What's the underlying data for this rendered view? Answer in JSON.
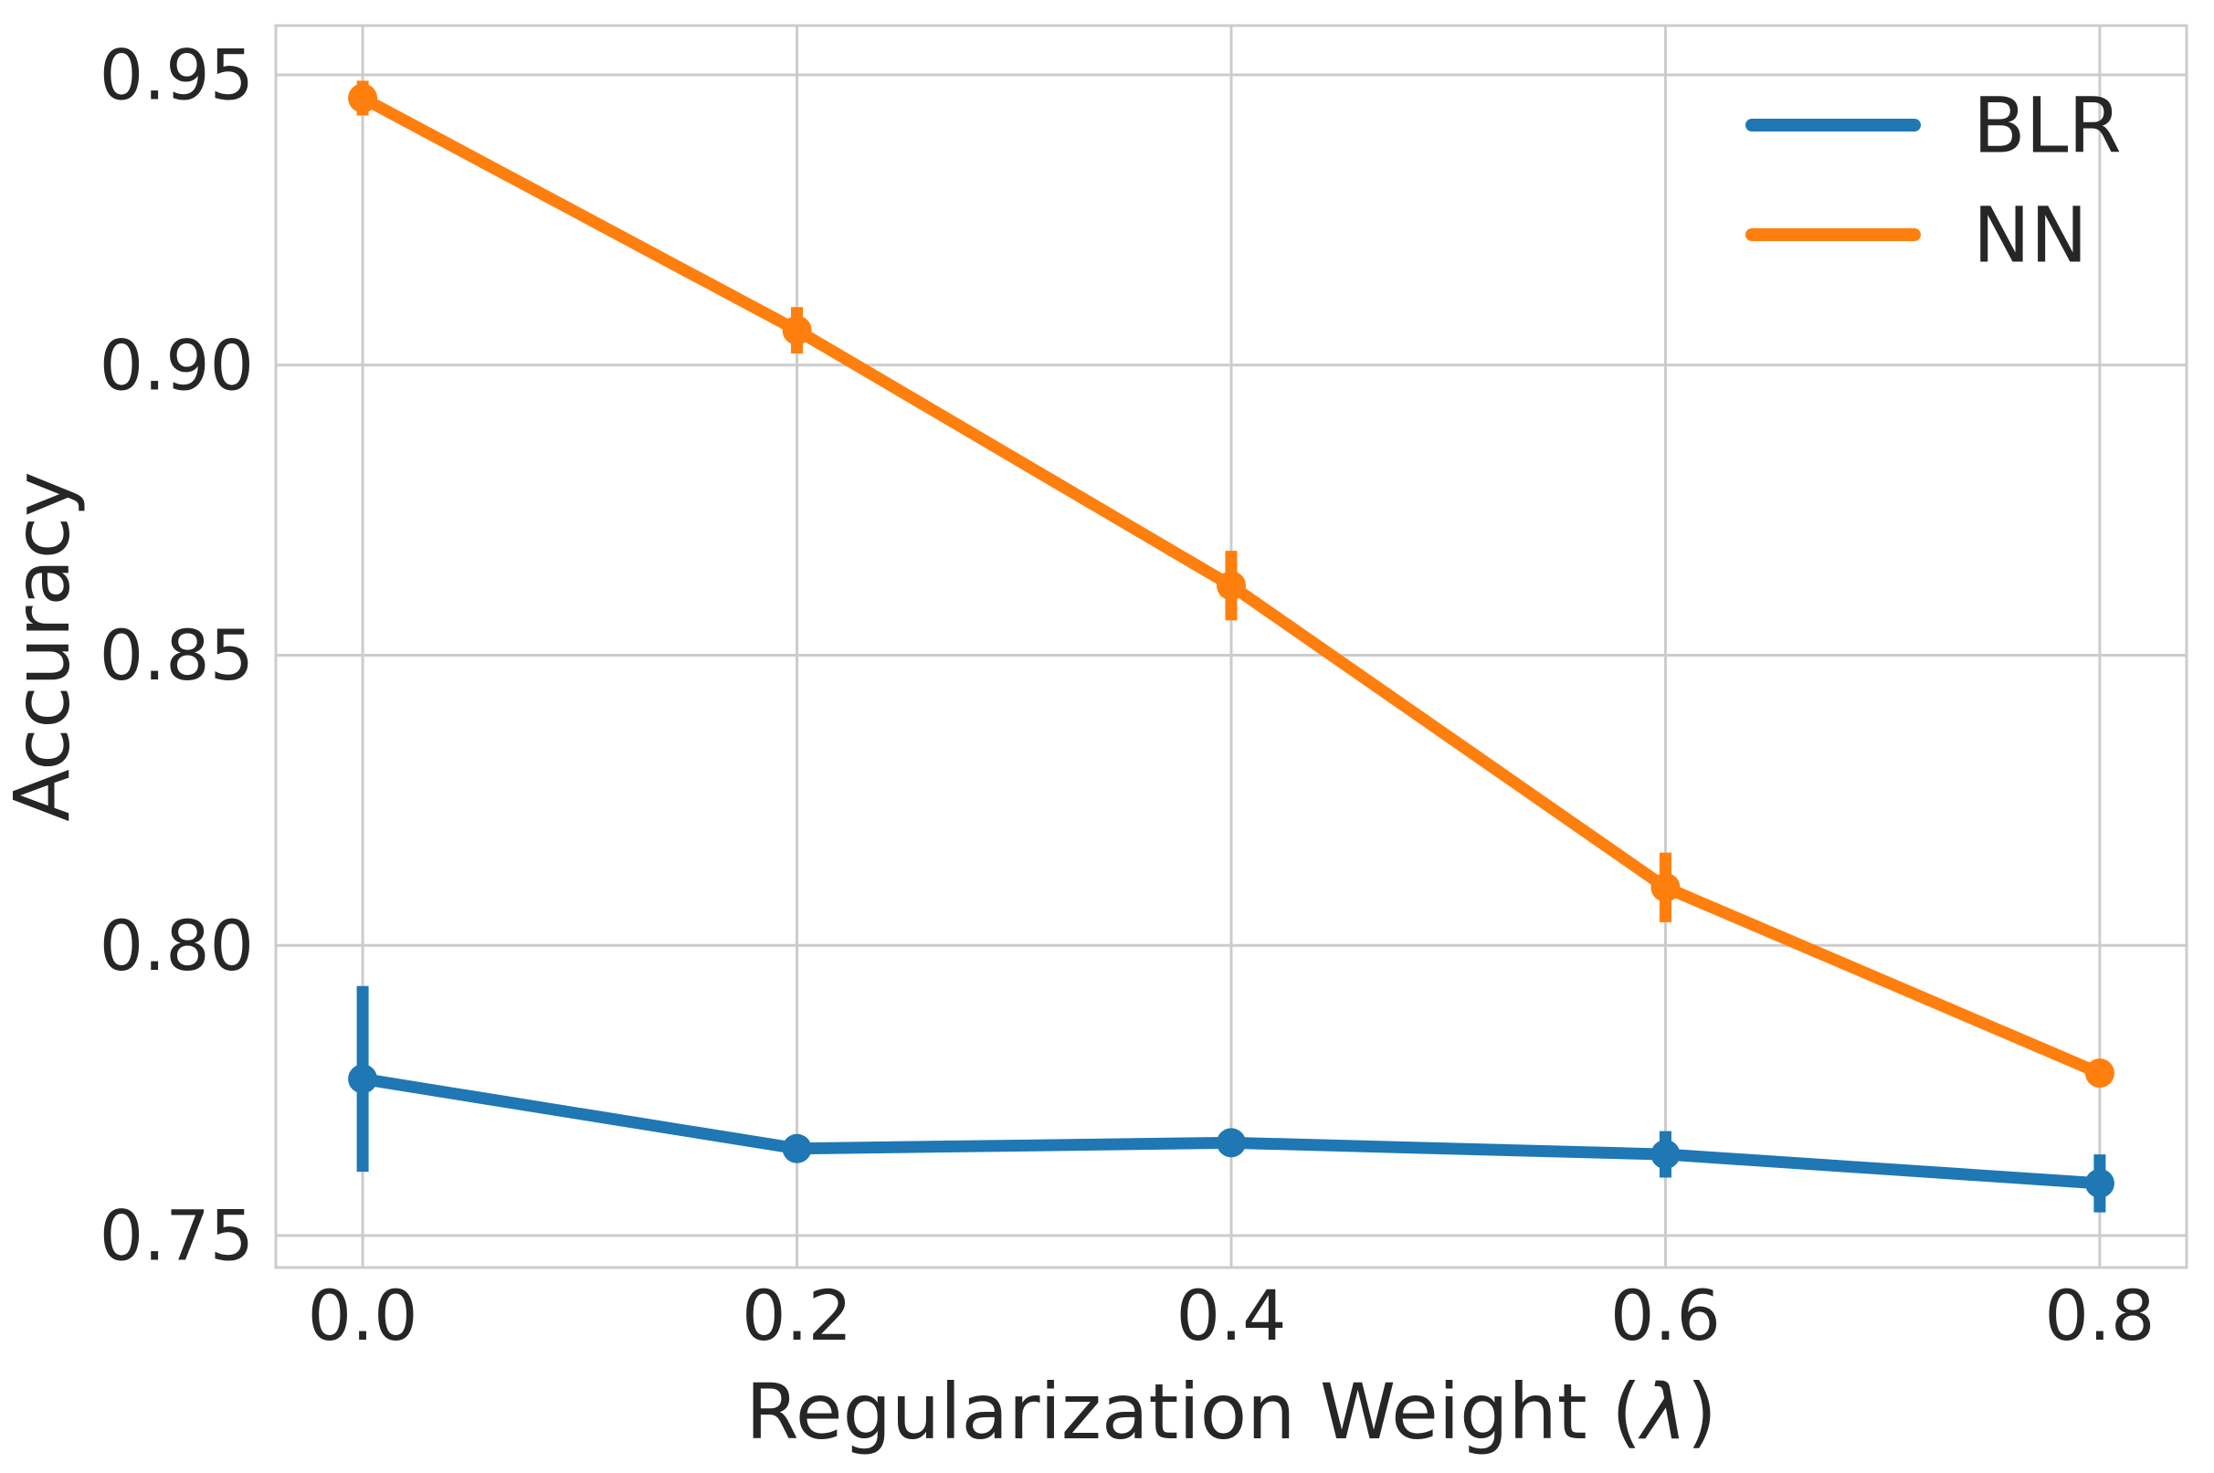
{
  "figure": {
    "background": "#ffffff"
  },
  "chart_data": {
    "type": "line",
    "title": "",
    "xlabel": "Regularization Weight (λ)",
    "ylabel": "Accuracy",
    "x": [
      0.0,
      0.2,
      0.4,
      0.6,
      0.8
    ],
    "x_tick_labels": [
      "0.0",
      "0.2",
      "0.4",
      "0.6",
      "0.8"
    ],
    "y_ticks": [
      0.75,
      0.8,
      0.85,
      0.9,
      0.95
    ],
    "y_tick_labels": [
      "0.75",
      "0.80",
      "0.85",
      "0.90",
      "0.95"
    ],
    "xlim": [
      -0.04,
      0.84
    ],
    "ylim": [
      0.7445,
      0.9585
    ],
    "grid": true,
    "grid_color": "#cccccc",
    "text_color": "#262626",
    "background_color": "#ffffff",
    "legend": {
      "position": "upper right",
      "frame": false,
      "entries": [
        "BLR",
        "NN"
      ]
    },
    "series": [
      {
        "name": "BLR",
        "color": "#1f77b4",
        "marker": "circle",
        "values": [
          0.777,
          0.765,
          0.766,
          0.764,
          0.759
        ],
        "errors": [
          0.016,
          0.002,
          0.002,
          0.004,
          0.005
        ]
      },
      {
        "name": "NN",
        "color": "#ff7f0e",
        "marker": "circle",
        "values": [
          0.946,
          0.906,
          0.862,
          0.81,
          0.778
        ],
        "errors": [
          0.003,
          0.004,
          0.006,
          0.006,
          0.002
        ]
      }
    ]
  }
}
